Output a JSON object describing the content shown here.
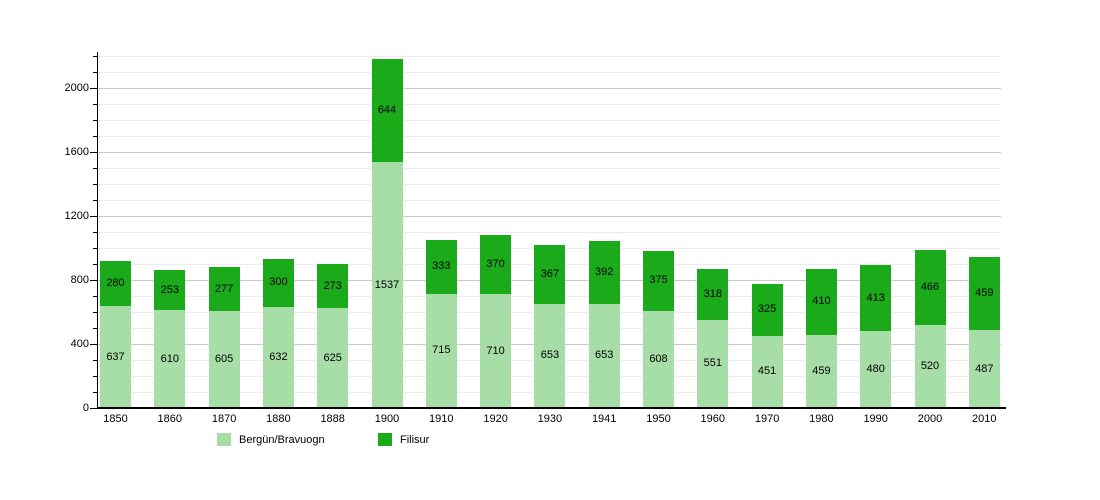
{
  "chart_data": {
    "type": "bar",
    "stacked": true,
    "title": "",
    "xlabel": "",
    "ylabel": "",
    "categories": [
      "1850",
      "1860",
      "1870",
      "1880",
      "1888",
      "1900",
      "1910",
      "1920",
      "1930",
      "1941",
      "1950",
      "1960",
      "1970",
      "1980",
      "1990",
      "2000",
      "2010"
    ],
    "series": [
      {
        "name": "Bergün/Bravuogn",
        "color": "#a7dda7",
        "values": [
          637,
          610,
          605,
          632,
          625,
          1537,
          715,
          710,
          653,
          653,
          608,
          551,
          451,
          459,
          480,
          520,
          487
        ]
      },
      {
        "name": "Filisur",
        "color": "#1aaa1a",
        "values": [
          280,
          253,
          277,
          300,
          273,
          644,
          333,
          370,
          367,
          392,
          375,
          318,
          325,
          410,
          413,
          466,
          459
        ]
      }
    ],
    "ylim": [
      0,
      2200
    ],
    "ytick_labels": [
      "0",
      "400",
      "800",
      "1200",
      "1600",
      "2000"
    ],
    "ytick_step_major": 400,
    "ytick_step_minor": 100,
    "grid": true,
    "bar_value_labels": true,
    "legend_position": "bottom"
  },
  "colors": {
    "background": "#ffffff",
    "grid_minor": "#ececec",
    "grid_major": "#c9c9c9",
    "axis": "#000000",
    "text": "#000000"
  }
}
